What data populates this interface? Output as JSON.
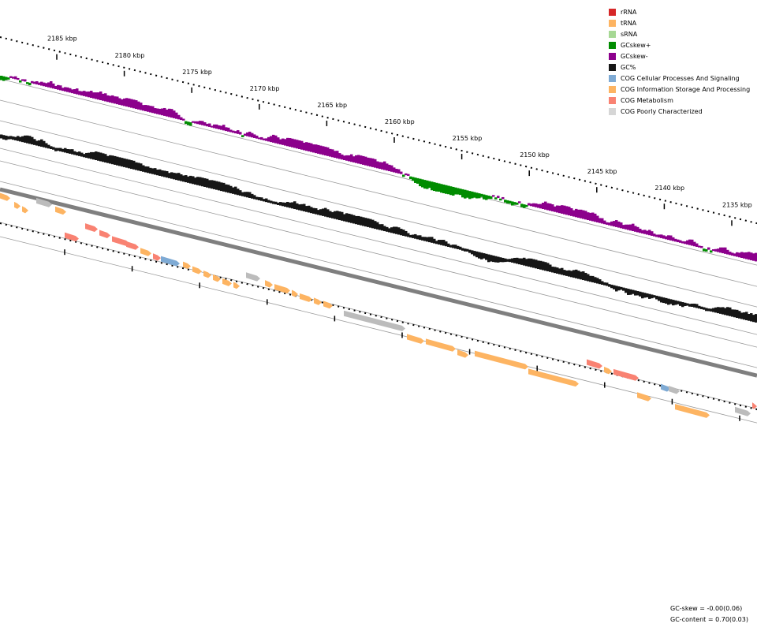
{
  "map": {
    "tick_labels": [
      "2185 kbp",
      "2180 kbp",
      "2175 kbp",
      "2170 kbp",
      "2165 kbp",
      "2160 kbp",
      "2155 kbp",
      "2150 kbp",
      "2145 kbp",
      "2140 kbp",
      "2135 kbp"
    ],
    "tracks": {
      "gc_skew": {
        "name": "GCskew",
        "positive_color": "#008c00",
        "negative_color": "#8c008c"
      },
      "gc_content": {
        "name": "GC%",
        "color": "#161616"
      },
      "backbone_color": "#7f7f7f"
    }
  },
  "legend": {
    "items": [
      {
        "label": "rRNA",
        "color": "#d62728"
      },
      {
        "label": "tRNA",
        "color": "#fdb462"
      },
      {
        "label": "sRNA",
        "color": "#a6d894"
      },
      {
        "label": "GCskew+",
        "color": "#008c00"
      },
      {
        "label": "GCskew-",
        "color": "#8c008c"
      },
      {
        "label": "GC%",
        "color": "#161616"
      },
      {
        "label": "COG Cellular Processes And Signaling",
        "color": "#7eaad4"
      },
      {
        "label": "COG Information Storage And Processing",
        "color": "#fdb462"
      },
      {
        "label": "COG Metabolism",
        "color": "#f98272"
      },
      {
        "label": "COG Poorly Characterized",
        "color": "#d6d6d6"
      }
    ]
  },
  "stats": {
    "gc_skew": "GC-skew = -0.00(0.06)",
    "gc_content": "GC-content = 0.70(0.03)"
  }
}
